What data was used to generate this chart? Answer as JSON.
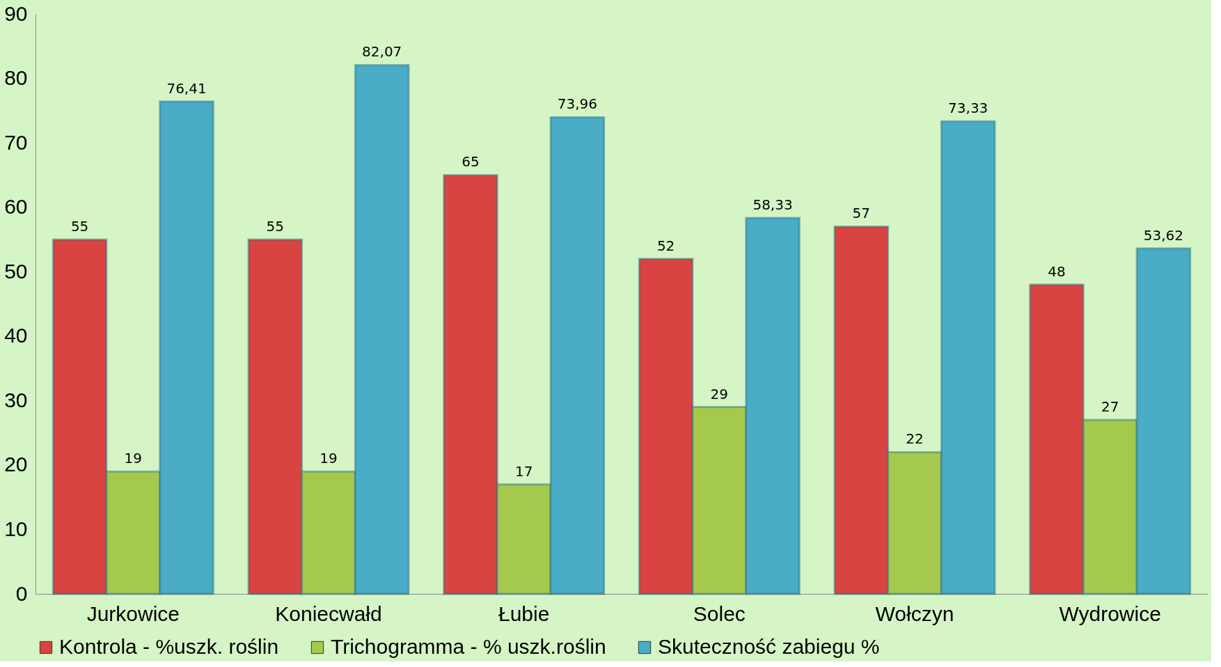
{
  "chart_data": {
    "type": "bar",
    "categories": [
      "Jurkowice",
      "Koniecwałd",
      "Łubie",
      "Solec",
      "Wołczyn",
      "Wydrowice"
    ],
    "series": [
      {
        "name": "Kontrola - %uszk. roślin",
        "color": "#d94341",
        "values": [
          55,
          55,
          65,
          52,
          57,
          48
        ],
        "value_labels": [
          "55",
          "55",
          "65",
          "52",
          "57",
          "48"
        ]
      },
      {
        "name": "Trichogramma - % uszk.roślin",
        "color": "#a5c94c",
        "values": [
          19,
          19,
          17,
          29,
          22,
          27
        ],
        "value_labels": [
          "19",
          "19",
          "17",
          "29",
          "22",
          "27"
        ]
      },
      {
        "name": "Skuteczność zabiegu %",
        "color": "#4aacc6",
        "values": [
          76.41,
          82.07,
          73.96,
          58.33,
          73.33,
          53.62
        ],
        "value_labels": [
          "76,41",
          "82,07",
          "73,96",
          "58,33",
          "73,33",
          "53,62"
        ]
      }
    ],
    "ylim": [
      0,
      90
    ],
    "yticks": [
      0,
      10,
      20,
      30,
      40,
      50,
      60,
      70,
      80,
      90
    ],
    "grid": false,
    "legend": "bottom"
  }
}
